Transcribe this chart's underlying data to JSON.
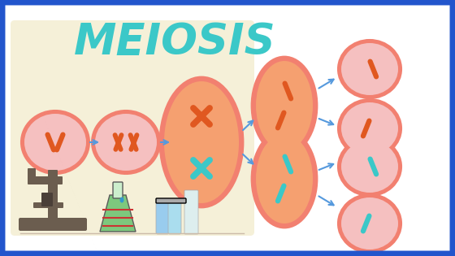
{
  "title": "MEIOSIS",
  "title_color": "#3BC8C8",
  "title_fontsize": 38,
  "bg_outer": "#ffffff",
  "bg_border": "#2255CC",
  "bg_panel": "#F5F0D8",
  "cell_outer_color": "#F28070",
  "cell_inner_pink": "#F5C0C0",
  "cell_inner_orange": "#F28070",
  "chrom_orange": "#E05820",
  "chrom_teal": "#3BC8C8",
  "arrow_color": "#5599DD",
  "border_width": 5,
  "figsize": [
    5.6,
    3.15
  ],
  "dpi": 100
}
